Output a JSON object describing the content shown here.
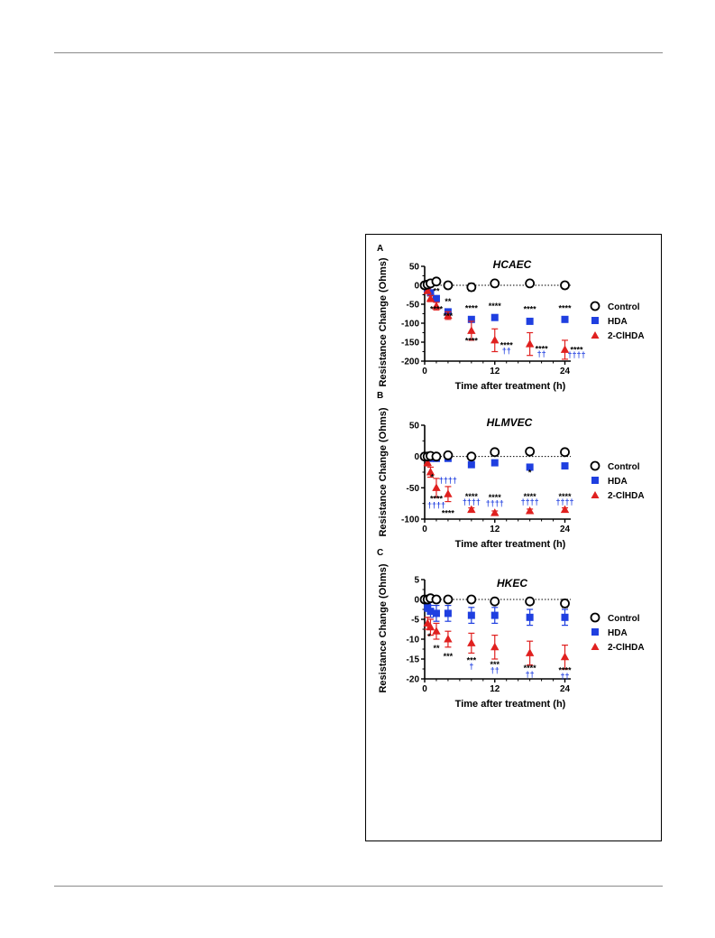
{
  "figure": {
    "panels": [
      {
        "letter": "A",
        "title": "HCAEC",
        "xlabel": "Time after treatment (h)",
        "ylabel": "Resistance Change (Ohms)",
        "xticks": [
          0,
          12,
          24
        ],
        "yticks": [
          50,
          0,
          -50,
          -100,
          -150,
          -200
        ],
        "legend": [
          "Control",
          "HDA",
          "2-ClHDA"
        ]
      },
      {
        "letter": "B",
        "title": "HLMVEC",
        "xlabel": "Time after treatment (h)",
        "ylabel": "Resistance Change (Ohms)",
        "xticks": [
          0,
          12,
          24
        ],
        "yticks": [
          50,
          0,
          -50,
          -100
        ],
        "legend": [
          "Control",
          "HDA",
          "2-ClHDA"
        ]
      },
      {
        "letter": "C",
        "title": "HKEC",
        "xlabel": "Time after treatment (h)",
        "ylabel": "Resistance Change (Ohms)",
        "xticks": [
          0,
          12,
          24
        ],
        "yticks": [
          5,
          0,
          -5,
          -10,
          -15,
          -20
        ],
        "legend": [
          "Control",
          "HDA",
          "2-ClHDA"
        ]
      }
    ]
  },
  "chart_data": [
    {
      "type": "scatter",
      "title": "HCAEC",
      "xlabel": "Time after treatment (h)",
      "ylabel": "Resistance Change (Ohms)",
      "xlim": [
        0,
        25
      ],
      "ylim": [
        -200,
        50
      ],
      "legend_position": "right",
      "series": [
        {
          "name": "Control",
          "marker": "circle-open",
          "color": "#000000",
          "x": [
            0,
            0.5,
            1,
            2,
            4,
            8,
            12,
            18,
            24
          ],
          "y": [
            0,
            2,
            5,
            10,
            0,
            -5,
            5,
            5,
            0
          ],
          "err": [
            2,
            2,
            2,
            3,
            3,
            10,
            3,
            3,
            2
          ]
        },
        {
          "name": "HDA",
          "marker": "square",
          "color": "#1f3fe0",
          "x": [
            0,
            0.5,
            1,
            2,
            4,
            8,
            12,
            18,
            24
          ],
          "y": [
            0,
            -10,
            -20,
            -35,
            -70,
            -90,
            -85,
            -95,
            -90
          ],
          "err": [
            2,
            3,
            4,
            5,
            5,
            5,
            5,
            5,
            5
          ]
        },
        {
          "name": "2-ClHDA",
          "marker": "triangle",
          "color": "#e0201f",
          "x": [
            0,
            0.5,
            1,
            2,
            4,
            8,
            12,
            18,
            24
          ],
          "y": [
            0,
            -15,
            -35,
            -55,
            -80,
            -120,
            -145,
            -155,
            -170
          ],
          "err": [
            2,
            5,
            8,
            10,
            10,
            25,
            30,
            30,
            25
          ]
        }
      ],
      "annotations": [
        {
          "text": "**",
          "color": "black",
          "x": 2,
          "y": -23
        },
        {
          "text": "****",
          "color": "black",
          "x": 2,
          "y": -70
        },
        {
          "text": "**",
          "color": "black",
          "x": 4,
          "y": -50
        },
        {
          "text": "***",
          "color": "black",
          "x": 4,
          "y": -88
        },
        {
          "text": "****",
          "color": "black",
          "x": 8,
          "y": -68
        },
        {
          "text": "****",
          "color": "black",
          "x": 8,
          "y": -153
        },
        {
          "text": "****",
          "color": "black",
          "x": 12,
          "y": -62
        },
        {
          "text": "****",
          "color": "black",
          "x": 14,
          "y": -165
        },
        {
          "text": "††",
          "color": "blue",
          "x": 14,
          "y": -180
        },
        {
          "text": "****",
          "color": "black",
          "x": 18,
          "y": -70
        },
        {
          "text": "****",
          "color": "black",
          "x": 20,
          "y": -175
        },
        {
          "text": "††",
          "color": "blue",
          "x": 20,
          "y": -188
        },
        {
          "text": "****",
          "color": "black",
          "x": 24,
          "y": -68
        },
        {
          "text": "****",
          "color": "black",
          "x": 26,
          "y": -177
        },
        {
          "text": "††††",
          "color": "blue",
          "x": 26,
          "y": -190
        }
      ]
    },
    {
      "type": "scatter",
      "title": "HLMVEC",
      "xlabel": "Time after treatment (h)",
      "ylabel": "Resistance Change (Ohms)",
      "xlim": [
        0,
        25
      ],
      "ylim": [
        -100,
        50
      ],
      "legend_position": "right",
      "series": [
        {
          "name": "Control",
          "marker": "circle-open",
          "color": "#000000",
          "x": [
            0,
            0.5,
            1,
            2,
            4,
            8,
            12,
            18,
            24
          ],
          "y": [
            0,
            0,
            1,
            0,
            2,
            0,
            7,
            8,
            7
          ],
          "err": [
            2,
            2,
            2,
            2,
            3,
            2,
            3,
            3,
            5
          ]
        },
        {
          "name": "HDA",
          "marker": "square",
          "color": "#1f3fe0",
          "x": [
            0,
            0.5,
            1,
            2,
            4,
            8,
            12,
            18,
            24
          ],
          "y": [
            0,
            -2,
            -3,
            -3,
            -3,
            -13,
            -10,
            -17,
            -15
          ],
          "err": [
            2,
            3,
            3,
            3,
            4,
            3,
            4,
            4,
            4
          ]
        },
        {
          "name": "2-ClHDA",
          "marker": "triangle",
          "color": "#e0201f",
          "x": [
            0,
            0.5,
            1,
            2,
            4,
            8,
            12,
            18,
            24
          ],
          "y": [
            0,
            -10,
            -25,
            -50,
            -60,
            -85,
            -90,
            -87,
            -85
          ],
          "err": [
            2,
            5,
            8,
            15,
            12,
            3,
            3,
            3,
            3
          ]
        }
      ],
      "annotations": [
        {
          "text": "*",
          "color": "black",
          "x": 1.3,
          "y": -37
        },
        {
          "text": "††††",
          "color": "blue",
          "x": 4,
          "y": -42
        },
        {
          "text": "****",
          "color": "black",
          "x": 2,
          "y": -72
        },
        {
          "text": "††††",
          "color": "blue",
          "x": 2,
          "y": -82
        },
        {
          "text": "****",
          "color": "black",
          "x": 4,
          "y": -95
        },
        {
          "text": "****",
          "color": "black",
          "x": 8,
          "y": -68
        },
        {
          "text": "††††",
          "color": "blue",
          "x": 8,
          "y": -77
        },
        {
          "text": "****",
          "color": "black",
          "x": 12,
          "y": -70
        },
        {
          "text": "††††",
          "color": "blue",
          "x": 12,
          "y": -79
        },
        {
          "text": "*",
          "color": "black",
          "x": 18,
          "y": -30
        },
        {
          "text": "****",
          "color": "black",
          "x": 18,
          "y": -68
        },
        {
          "text": "††††",
          "color": "blue",
          "x": 18,
          "y": -77
        },
        {
          "text": "****",
          "color": "black",
          "x": 24,
          "y": -68
        },
        {
          "text": "††††",
          "color": "blue",
          "x": 24,
          "y": -77
        }
      ]
    },
    {
      "type": "scatter",
      "title": "HKEC",
      "xlabel": "Time after treatment (h)",
      "ylabel": "Resistance Change (Ohms)",
      "xlim": [
        0,
        25
      ],
      "ylim": [
        -20,
        5
      ],
      "legend_position": "right",
      "series": [
        {
          "name": "Control",
          "marker": "circle-open",
          "color": "#000000",
          "x": [
            0,
            0.5,
            1,
            2,
            4,
            8,
            12,
            18,
            24
          ],
          "y": [
            0,
            0,
            0.3,
            0,
            0,
            0,
            -0.5,
            -0.5,
            -1
          ],
          "err": [
            0.3,
            0.3,
            0.3,
            0.3,
            0.3,
            0.3,
            0.5,
            0.8,
            1
          ]
        },
        {
          "name": "HDA",
          "marker": "square",
          "color": "#1f3fe0",
          "x": [
            0,
            0.5,
            1,
            2,
            4,
            8,
            12,
            18,
            24
          ],
          "y": [
            0,
            -2,
            -3,
            -3.5,
            -3.5,
            -4,
            -4,
            -4.5,
            -4.5
          ],
          "err": [
            0.5,
            1,
            1.5,
            2,
            2,
            2,
            2,
            2,
            2
          ]
        },
        {
          "name": "2-ClHDA",
          "marker": "triangle",
          "color": "#e0201f",
          "x": [
            0,
            0.5,
            1,
            2,
            4,
            8,
            12,
            18,
            24
          ],
          "y": [
            0,
            -6,
            -7,
            -8,
            -10,
            -11,
            -12,
            -13.5,
            -14.5
          ],
          "err": [
            0.5,
            1.5,
            2,
            2,
            2,
            2.5,
            3,
            3,
            3
          ]
        }
      ],
      "annotations": [
        {
          "text": "*",
          "color": "black",
          "x": 0.8,
          "y": -10
        },
        {
          "text": "**",
          "color": "black",
          "x": 2,
          "y": -13
        },
        {
          "text": "***",
          "color": "black",
          "x": 4,
          "y": -15
        },
        {
          "text": "***",
          "color": "black",
          "x": 8,
          "y": -16
        },
        {
          "text": "†",
          "color": "blue",
          "x": 8,
          "y": -17.5
        },
        {
          "text": "***",
          "color": "black",
          "x": 12,
          "y": -17
        },
        {
          "text": "††",
          "color": "blue",
          "x": 12,
          "y": -18.5
        },
        {
          "text": "****",
          "color": "black",
          "x": 18,
          "y": -18
        },
        {
          "text": "††",
          "color": "blue",
          "x": 18,
          "y": -19.5
        },
        {
          "text": "****",
          "color": "black",
          "x": 24,
          "y": -18.5
        },
        {
          "text": "††",
          "color": "blue",
          "x": 24,
          "y": -20
        }
      ]
    }
  ]
}
